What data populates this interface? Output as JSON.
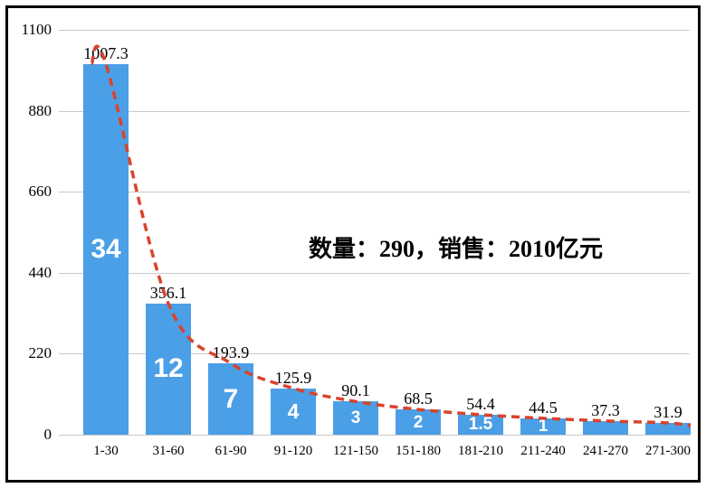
{
  "frame": {
    "border_color": "#000000",
    "background": "#ffffff"
  },
  "chart_data": {
    "type": "bar",
    "title": "",
    "xlabel": "",
    "ylabel": "",
    "categories": [
      "1-30",
      "31-60",
      "61-90",
      "91-120",
      "121-150",
      "151-180",
      "181-210",
      "211-240",
      "241-270",
      "271-300"
    ],
    "values": [
      1007.3,
      356.1,
      193.9,
      125.9,
      90.1,
      68.5,
      54.4,
      44.5,
      37.3,
      31.9
    ],
    "value_labels": [
      "1007.3",
      "356.1",
      "193.9",
      "125.9",
      "90.1",
      "68.5",
      "54.4",
      "44.5",
      "37.3",
      "31.9"
    ],
    "bar_counts": [
      "34",
      "12",
      "7",
      "4",
      "3",
      "2",
      "1.5",
      "1",
      "",
      ""
    ],
    "y_ticks": [
      0,
      220,
      440,
      660,
      880,
      1100
    ],
    "ylim": [
      0,
      1100
    ],
    "grid": true,
    "legend": "none",
    "annotation": "数量：290，销售：2010亿元",
    "bar_color": "#4b9fe6",
    "count_text_color": "#ffffff",
    "trend_color": "#d8442c",
    "trend_style": "dashed",
    "gridline_color": "#c9c9c9"
  }
}
